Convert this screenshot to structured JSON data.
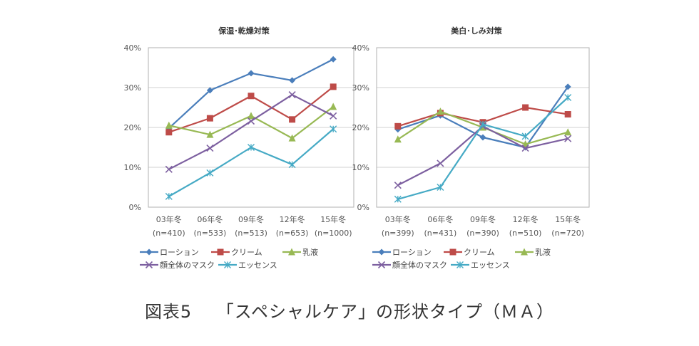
{
  "caption": {
    "figure_no": "図表5",
    "title": "「スペシャルケア」の形状タイプ（ＭＡ）"
  },
  "colors": {
    "ローション": "#4a7ebb",
    "クリーム": "#be4b48",
    "乳液": "#98b954",
    "顔全体のマスク": "#7d60a0",
    "エッセンス": "#46aac5",
    "grid": "#d9d9d9",
    "axis": "#b0b0b0"
  },
  "chart_data": [
    {
      "type": "line",
      "title": "保湿･乾燥対策",
      "xlabel": "",
      "ylabel": "",
      "categories": [
        "03年冬",
        "06年冬",
        "09年冬",
        "12年冬",
        "15年冬"
      ],
      "category_n": [
        "(n=410)",
        "(n=533)",
        "(n=513)",
        "(n=653)",
        "(n=1000)"
      ],
      "yticks": [
        "0%",
        "10%",
        "20%",
        "30%",
        "40%"
      ],
      "ylim": [
        0,
        40
      ],
      "grid": true,
      "legend_position": "bottom",
      "series": [
        {
          "name": "ローション",
          "marker": "diamond",
          "values": [
            19.8,
            29.3,
            33.6,
            31.8,
            37.1
          ]
        },
        {
          "name": "クリーム",
          "marker": "square",
          "values": [
            18.8,
            22.3,
            27.9,
            22.0,
            30.2
          ]
        },
        {
          "name": "乳液",
          "marker": "triangle",
          "values": [
            20.5,
            18.2,
            22.9,
            17.3,
            25.2
          ]
        },
        {
          "name": "顔全体のマスク",
          "marker": "x",
          "values": [
            9.5,
            14.8,
            21.6,
            28.2,
            22.9
          ]
        },
        {
          "name": "エッセンス",
          "marker": "star",
          "values": [
            2.7,
            8.6,
            15.0,
            10.7,
            19.6
          ]
        }
      ]
    },
    {
      "type": "line",
      "title": "美白･しみ対策",
      "xlabel": "",
      "ylabel": "",
      "categories": [
        "03年冬",
        "06年冬",
        "09年冬",
        "12年冬",
        "15年冬"
      ],
      "category_n": [
        "(n=399)",
        "(n=431)",
        "(n=390)",
        "(n=510)",
        "(n=720)"
      ],
      "yticks": [
        "0%",
        "10%",
        "20%",
        "30%",
        "40%"
      ],
      "ylim": [
        0,
        40
      ],
      "grid": true,
      "legend_position": "bottom",
      "series": [
        {
          "name": "ローション",
          "marker": "diamond",
          "values": [
            19.5,
            23.0,
            17.5,
            15.0,
            30.2
          ]
        },
        {
          "name": "クリーム",
          "marker": "square",
          "values": [
            20.3,
            23.6,
            21.3,
            25.0,
            23.3
          ]
        },
        {
          "name": "乳液",
          "marker": "triangle",
          "values": [
            17.0,
            24.0,
            20.0,
            15.8,
            18.8
          ]
        },
        {
          "name": "顔全体のマスク",
          "marker": "x",
          "values": [
            5.5,
            11.0,
            20.3,
            14.8,
            17.2
          ]
        },
        {
          "name": "エッセンス",
          "marker": "star",
          "values": [
            2.0,
            5.0,
            20.8,
            17.8,
            27.5
          ]
        }
      ]
    }
  ]
}
